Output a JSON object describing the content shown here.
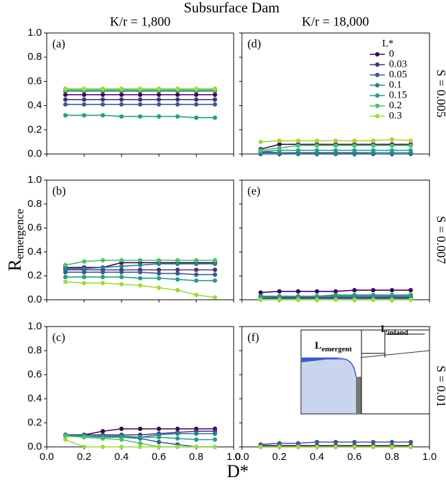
{
  "title": "Subsurface Dam",
  "column_titles": [
    "K/r = 1,800",
    "K/r  = 18,000"
  ],
  "row_labels": [
    "S = 0.005",
    "S = 0.007",
    "S = 0.01"
  ],
  "x_label": "D*",
  "y_label": {
    "main": "R",
    "sub": "emergence"
  },
  "inset_labels": [
    {
      "main": "L",
      "sub": "emergent"
    },
    {
      "main": "L",
      "sub": "inland"
    }
  ],
  "chart_data": [
    {
      "type": "line",
      "panel": "(a)",
      "x": [
        0.1,
        0.2,
        0.3,
        0.4,
        0.5,
        0.6,
        0.7,
        0.8,
        0.9
      ],
      "xlim": [
        0,
        1
      ],
      "ylim": [
        0,
        1
      ],
      "yticks": [
        {
          "value": 0,
          "label": "0.0"
        },
        {
          "value": 0.2,
          "label": "0.2"
        },
        {
          "value": 0.4,
          "label": "0.4"
        },
        {
          "value": 0.6,
          "label": "0.6"
        },
        {
          "value": 0.8,
          "label": "0.8"
        },
        {
          "value": 1,
          "label": "1.0"
        }
      ],
      "series": [
        {
          "color": "#440154",
          "values": [
            0.49,
            0.49,
            0.49,
            0.49,
            0.49,
            0.49,
            0.49,
            0.49,
            0.49
          ]
        },
        {
          "color": "#46327e",
          "values": [
            0.45,
            0.45,
            0.45,
            0.45,
            0.45,
            0.45,
            0.45,
            0.45,
            0.45
          ]
        },
        {
          "color": "#365c8d",
          "values": [
            0.41,
            0.41,
            0.41,
            0.41,
            0.41,
            0.41,
            0.41,
            0.41,
            0.41
          ]
        },
        {
          "color": "#277f8e",
          "values": [
            0.52,
            0.52,
            0.52,
            0.52,
            0.52,
            0.52,
            0.52,
            0.52,
            0.52
          ]
        },
        {
          "color": "#1fa187",
          "values": [
            0.32,
            0.32,
            0.32,
            0.31,
            0.31,
            0.31,
            0.31,
            0.3,
            0.3
          ]
        },
        {
          "color": "#4ac16d",
          "values": [
            0.53,
            0.53,
            0.53,
            0.53,
            0.53,
            0.53,
            0.53,
            0.53,
            0.53
          ]
        },
        {
          "color": "#a0da39",
          "values": [
            0.54,
            0.54,
            0.54,
            0.54,
            0.54,
            0.54,
            0.54,
            0.54,
            0.54
          ]
        }
      ]
    },
    {
      "type": "line",
      "panel": "(b)",
      "x": [
        0.1,
        0.2,
        0.3,
        0.4,
        0.5,
        0.6,
        0.7,
        0.8,
        0.9
      ],
      "xlim": [
        0,
        1
      ],
      "ylim": [
        0,
        1
      ],
      "yticks": [
        {
          "value": 0,
          "label": "0.0"
        },
        {
          "value": 0.2,
          "label": "0.2"
        },
        {
          "value": 0.4,
          "label": "0.4"
        },
        {
          "value": 0.6,
          "label": "0.6"
        },
        {
          "value": 0.8,
          "label": "0.8"
        },
        {
          "value": 1,
          "label": "1.0"
        }
      ],
      "series": [
        {
          "color": "#440154",
          "values": [
            0.27,
            0.27,
            0.27,
            0.31,
            0.31,
            0.31,
            0.31,
            0.31,
            0.31
          ]
        },
        {
          "color": "#46327e",
          "values": [
            0.25,
            0.25,
            0.25,
            0.25,
            0.25,
            0.25,
            0.25,
            0.25,
            0.25
          ]
        },
        {
          "color": "#365c8d",
          "values": [
            0.23,
            0.23,
            0.23,
            0.23,
            0.23,
            0.22,
            0.22,
            0.21,
            0.21
          ]
        },
        {
          "color": "#277f8e",
          "values": [
            0.26,
            0.26,
            0.27,
            0.28,
            0.29,
            0.3,
            0.3,
            0.3,
            0.3
          ]
        },
        {
          "color": "#1fa187",
          "values": [
            0.19,
            0.19,
            0.19,
            0.19,
            0.18,
            0.18,
            0.17,
            0.16,
            0.16
          ]
        },
        {
          "color": "#4ac16d",
          "values": [
            0.29,
            0.32,
            0.33,
            0.33,
            0.33,
            0.33,
            0.33,
            0.33,
            0.33
          ]
        },
        {
          "color": "#a0da39",
          "values": [
            0.15,
            0.14,
            0.14,
            0.13,
            0.12,
            0.1,
            0.08,
            0.04,
            0.02
          ]
        }
      ]
    },
    {
      "type": "line",
      "panel": "(c)",
      "x": [
        0.1,
        0.2,
        0.3,
        0.4,
        0.5,
        0.6,
        0.7,
        0.8,
        0.9
      ],
      "xlim": [
        0,
        1
      ],
      "ylim": [
        0,
        1
      ],
      "xticks": [
        {
          "value": 0,
          "label": "0.0"
        },
        {
          "value": 0.2,
          "label": "0.2"
        },
        {
          "value": 0.4,
          "label": "0.4"
        },
        {
          "value": 0.6,
          "label": "0.6"
        },
        {
          "value": 0.8,
          "label": "0.8"
        },
        {
          "value": 1,
          "label": "1.0"
        }
      ],
      "yticks": [
        {
          "value": 0,
          "label": "0.0"
        },
        {
          "value": 0.2,
          "label": "0.2"
        },
        {
          "value": 0.4,
          "label": "0.4"
        },
        {
          "value": 0.6,
          "label": "0.6"
        },
        {
          "value": 0.8,
          "label": "0.8"
        },
        {
          "value": 1,
          "label": "1.0"
        }
      ],
      "series": [
        {
          "color": "#440154",
          "values": [
            0.1,
            0.1,
            0.13,
            0.15,
            0.15,
            0.15,
            0.15,
            0.15,
            0.15
          ]
        },
        {
          "color": "#46327e",
          "values": [
            0.1,
            0.1,
            0.1,
            0.1,
            0.1,
            0.11,
            0.12,
            0.13,
            0.13
          ]
        },
        {
          "color": "#365c8d",
          "values": [
            0.09,
            0.09,
            0.09,
            0.08,
            0.07,
            0.04,
            0.02,
            0,
            0
          ]
        },
        {
          "color": "#277f8e",
          "values": [
            0.1,
            0.09,
            0.09,
            0.09,
            0.08,
            0.1,
            0.11,
            0.11,
            0.11
          ]
        },
        {
          "color": "#1fa187",
          "values": [
            0.09,
            0.09,
            0.08,
            0.08,
            0.08,
            0.08,
            0.07,
            0.06,
            0.06
          ]
        },
        {
          "color": "#4ac16d",
          "values": [
            0.09,
            0.08,
            0.07,
            0.06,
            0.03,
            0,
            0,
            0,
            0
          ]
        },
        {
          "color": "#a0da39",
          "values": [
            0.06,
            0,
            0,
            0,
            0,
            0,
            0,
            0,
            0
          ]
        }
      ]
    },
    {
      "type": "line",
      "panel": "(d)",
      "x": [
        0.1,
        0.2,
        0.3,
        0.4,
        0.5,
        0.6,
        0.7,
        0.8,
        0.9
      ],
      "xlim": [
        0,
        1
      ],
      "ylim": [
        0,
        1
      ],
      "legend_title": "L*",
      "series": [
        {
          "name": "0",
          "color": "#440154",
          "values": [
            0.04,
            0.08,
            0.08,
            0.08,
            0.08,
            0.08,
            0.08,
            0.08,
            0.08
          ]
        },
        {
          "name": "0.03",
          "color": "#46327e",
          "values": [
            0.02,
            0.01,
            0.01,
            0.01,
            0.01,
            0.01,
            0.01,
            0.01,
            0.01
          ]
        },
        {
          "name": "0.05",
          "color": "#365c8d",
          "values": [
            0,
            0,
            0,
            0,
            0,
            0,
            0,
            0,
            0
          ]
        },
        {
          "name": "0.1",
          "color": "#277f8e",
          "values": [
            0.01,
            0.01,
            0,
            0,
            0,
            0,
            0.01,
            0.01,
            0.01
          ]
        },
        {
          "name": "0.15",
          "color": "#1fa187",
          "values": [
            0.02,
            0.03,
            0.03,
            0.03,
            0.03,
            0.03,
            0.03,
            0.03,
            0.03
          ]
        },
        {
          "name": "0.2",
          "color": "#4ac16d",
          "values": [
            0.03,
            0.05,
            0.07,
            0.07,
            0.07,
            0.07,
            0.07,
            0.07,
            0.07
          ]
        },
        {
          "name": "0.3",
          "color": "#a0da39",
          "values": [
            0.1,
            0.11,
            0.11,
            0.11,
            0.11,
            0.11,
            0.11,
            0.12,
            0.11
          ]
        }
      ]
    },
    {
      "type": "line",
      "panel": "(e)",
      "x": [
        0.1,
        0.2,
        0.3,
        0.4,
        0.5,
        0.6,
        0.7,
        0.8,
        0.9
      ],
      "xlim": [
        0,
        1
      ],
      "ylim": [
        0,
        1
      ],
      "series": [
        {
          "color": "#440154",
          "values": [
            0.06,
            0.07,
            0.07,
            0.07,
            0.07,
            0.08,
            0.08,
            0.08,
            0.08
          ]
        },
        {
          "color": "#46327e",
          "values": [
            0.02,
            0.02,
            0.02,
            0.02,
            0.02,
            0.02,
            0.02,
            0.02,
            0.02
          ]
        },
        {
          "color": "#365c8d",
          "values": [
            0.01,
            0.01,
            0.01,
            0.01,
            0.01,
            0.01,
            0.01,
            0.01,
            0.01
          ]
        },
        {
          "color": "#277f8e",
          "values": [
            0.03,
            0.03,
            0.03,
            0.03,
            0.03,
            0.03,
            0.03,
            0.03,
            0.03
          ]
        },
        {
          "color": "#1fa187",
          "values": [
            0.02,
            0.03,
            0.03,
            0.03,
            0.04,
            0.04,
            0.04,
            0.04,
            0.04
          ]
        },
        {
          "color": "#4ac16d",
          "values": [
            0,
            0,
            0,
            0,
            0,
            0,
            0,
            0,
            0
          ]
        },
        {
          "color": "#a0da39",
          "values": [
            0,
            0,
            0,
            0,
            0,
            0,
            0,
            0,
            0
          ]
        }
      ]
    },
    {
      "type": "line",
      "panel": "(f)",
      "x": [
        0.1,
        0.2,
        0.3,
        0.4,
        0.5,
        0.6,
        0.7,
        0.8,
        0.9
      ],
      "xlim": [
        0,
        1
      ],
      "ylim": [
        0,
        1
      ],
      "xticks": [
        {
          "value": 0,
          "label": "0.0"
        },
        {
          "value": 0.2,
          "label": "0.2"
        },
        {
          "value": 0.4,
          "label": "0.4"
        },
        {
          "value": 0.6,
          "label": "0.6"
        },
        {
          "value": 0.8,
          "label": "0.8"
        },
        {
          "value": 1,
          "label": "1.0"
        }
      ],
      "series": [
        {
          "color": "#440154",
          "values": [
            0.01,
            0.01,
            0.01,
            0.01,
            0.01,
            0.01,
            0.01,
            0.01,
            0.01
          ]
        },
        {
          "color": "#46327e",
          "values": [
            0,
            0,
            0,
            0,
            0,
            0,
            0,
            0,
            0
          ]
        },
        {
          "color": "#365c8d",
          "values": [
            0.02,
            0.03,
            0.03,
            0.04,
            0.04,
            0.04,
            0.04,
            0.04,
            0.04
          ]
        },
        {
          "color": "#277f8e",
          "values": [
            0,
            0,
            0,
            0,
            0,
            0,
            0,
            0,
            0
          ]
        },
        {
          "color": "#1fa187",
          "values": [
            0,
            0,
            0,
            0,
            0,
            0,
            0,
            0,
            0
          ]
        },
        {
          "color": "#4ac16d",
          "values": [
            0,
            0,
            0,
            0,
            0,
            0,
            0,
            0,
            0
          ]
        },
        {
          "color": "#a0da39",
          "values": [
            0,
            0,
            0,
            0,
            0,
            0,
            0,
            0,
            0
          ]
        }
      ]
    }
  ]
}
